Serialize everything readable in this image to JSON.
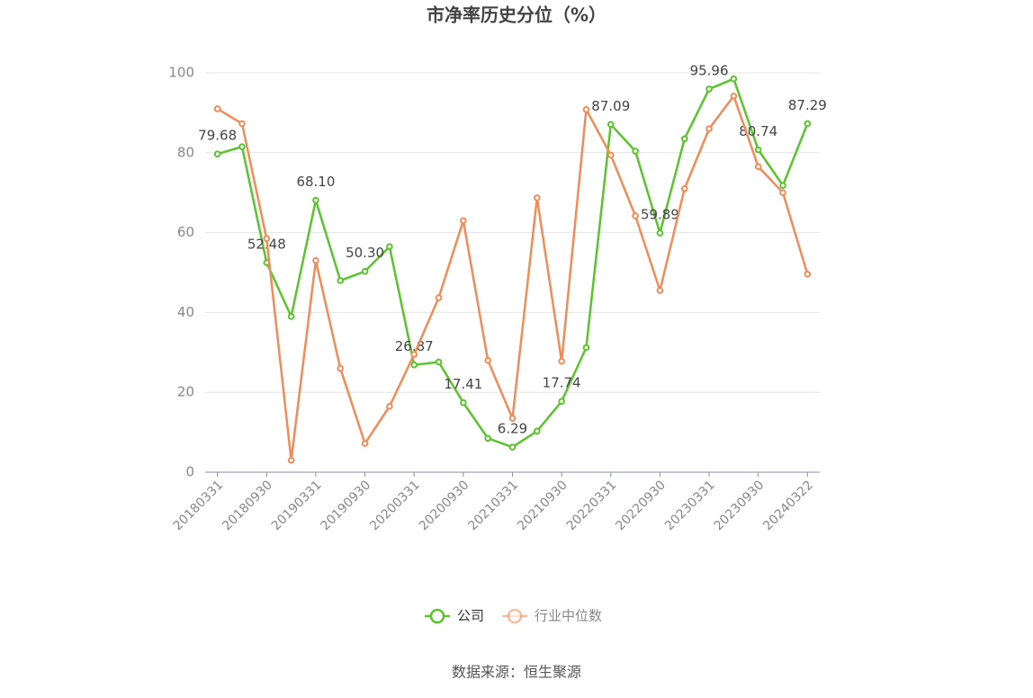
{
  "chart_data": {
    "type": "line",
    "title": "市净率历史分位（%）",
    "categories": [
      "20180331",
      null,
      "20180930",
      null,
      "20190331",
      null,
      "20190930",
      null,
      "20200331",
      null,
      "20200930",
      null,
      "20210331",
      null,
      "20210930",
      null,
      "20220331",
      null,
      "20220930",
      null,
      "20230331",
      null,
      "20230930",
      null,
      "20240322"
    ],
    "series": [
      {
        "name": "公司",
        "color": "#5ac42c",
        "values": [
          79.68,
          81.5,
          52.48,
          39,
          68.1,
          48,
          50.3,
          56.5,
          26.87,
          27.6,
          17.41,
          8.5,
          6.29,
          10.3,
          17.74,
          31.2,
          87.09,
          80.4,
          59.89,
          83.5,
          95.96,
          98.5,
          80.74,
          71.8,
          87.29
        ],
        "value_labels": [
          "79.68",
          null,
          "52.48",
          null,
          "68.10",
          null,
          "50.30",
          null,
          "26.87",
          null,
          "17.41",
          null,
          "6.29",
          null,
          "17.74",
          null,
          "87.09",
          null,
          "59.89",
          null,
          "95.96",
          null,
          "80.74",
          null,
          "87.29"
        ]
      },
      {
        "name": "行业中位数",
        "color": "#f28b57",
        "values": [
          91,
          87.3,
          58.5,
          3,
          53,
          26,
          7.2,
          16.5,
          29.5,
          43.7,
          63,
          28,
          13.5,
          68.7,
          27.8,
          90.8,
          79.4,
          64.2,
          45.5,
          71,
          86,
          94.2,
          76.5,
          70,
          49.6
        ]
      }
    ],
    "ylim": [
      0,
      100
    ],
    "yticks": [
      0,
      20,
      40,
      60,
      80,
      100
    ],
    "grid": true,
    "legend": "bottom",
    "source": "数据来源：恒生聚源"
  }
}
